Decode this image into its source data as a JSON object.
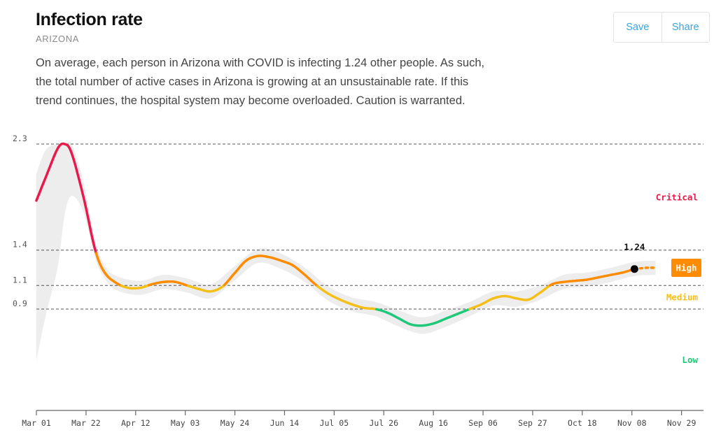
{
  "header": {
    "title": "Infection rate",
    "subtitle": "ARIZONA",
    "description": "On average, each person in Arizona with COVID is infecting 1.24 other people. As such, the total number of active cases in Arizona is growing at an unsustainable rate. If this trend continues, the hospital system may become overloaded. Caution is warranted."
  },
  "actions": {
    "save_label": "Save",
    "share_label": "Share"
  },
  "colors": {
    "critical": "#e8194d",
    "high": "#ff8c00",
    "medium": "#f5bf19",
    "low": "#1ec878",
    "band": "#ededed",
    "accent": "#3ba5dc"
  },
  "chart_data": {
    "type": "line",
    "ylabel": "",
    "xlabel": "",
    "x_tick_labels": [
      "Mar 01",
      "Mar 22",
      "Apr 12",
      "May 03",
      "May 24",
      "Jun 14",
      "Jul 05",
      "Jul 26",
      "Aug 16",
      "Sep 06",
      "Sep 27",
      "Oct 18",
      "Nov 08",
      "Nov 29"
    ],
    "y_ticks": [
      0.9,
      1.1,
      1.4,
      2.3
    ],
    "ylim": [
      0.04,
      2.3
    ],
    "xlim": [
      "2020-03-01",
      "2020-12-01"
    ],
    "grid": "dashed horizontal lines at 0.9, 1.1, 1.4, 2.3",
    "zones": [
      {
        "name": "Critical",
        "label": "Critical",
        "min": 1.4
      },
      {
        "name": "High",
        "label": "High",
        "min": 1.1,
        "max": 1.4
      },
      {
        "name": "Medium",
        "label": "Medium",
        "min": 0.9,
        "max": 1.1
      },
      {
        "name": "Low",
        "label": "Low",
        "max": 0.9
      }
    ],
    "current_zone": "High",
    "current_value_label": "1.24",
    "current_value": 1.24,
    "current_date": "2020-11-10",
    "series": [
      {
        "dates": [
          "2020-03-01",
          "2020-03-05",
          "2020-03-10",
          "2020-03-13",
          "2020-03-16",
          "2020-03-21",
          "2020-03-26",
          "2020-03-30",
          "2020-04-04",
          "2020-04-09",
          "2020-04-14",
          "2020-04-19",
          "2020-04-24",
          "2020-04-29",
          "2020-05-04",
          "2020-05-09",
          "2020-05-14",
          "2020-05-19",
          "2020-05-24",
          "2020-05-29",
          "2020-06-03",
          "2020-06-08",
          "2020-06-13",
          "2020-06-18",
          "2020-06-23",
          "2020-06-28",
          "2020-07-03",
          "2020-07-08",
          "2020-07-13",
          "2020-07-18",
          "2020-07-23",
          "2020-07-28",
          "2020-08-02",
          "2020-08-07",
          "2020-08-12",
          "2020-08-17",
          "2020-08-22",
          "2020-08-27",
          "2020-09-01",
          "2020-09-06",
          "2020-09-11",
          "2020-09-16",
          "2020-09-21",
          "2020-09-26",
          "2020-10-01",
          "2020-10-06",
          "2020-10-11",
          "2020-10-16",
          "2020-10-21",
          "2020-10-26",
          "2020-10-31",
          "2020-11-05",
          "2020-11-10"
        ],
        "values": [
          1.82,
          2.02,
          2.26,
          2.3,
          2.22,
          1.85,
          1.4,
          1.21,
          1.12,
          1.08,
          1.08,
          1.11,
          1.13,
          1.13,
          1.1,
          1.07,
          1.05,
          1.09,
          1.2,
          1.31,
          1.35,
          1.34,
          1.31,
          1.27,
          1.19,
          1.1,
          1.03,
          0.98,
          0.94,
          0.91,
          0.9,
          0.87,
          0.82,
          0.77,
          0.76,
          0.78,
          0.82,
          0.86,
          0.9,
          0.94,
          0.99,
          1.01,
          0.99,
          0.98,
          1.04,
          1.11,
          1.13,
          1.14,
          1.15,
          1.17,
          1.19,
          1.21,
          1.24
        ]
      }
    ],
    "projection": {
      "dates": [
        "2020-11-10",
        "2020-11-15",
        "2020-11-19"
      ],
      "values": [
        1.24,
        1.25,
        1.25
      ]
    },
    "uncertainty_band": {
      "dates": [
        "2020-03-01",
        "2020-03-05",
        "2020-03-10",
        "2020-03-13",
        "2020-03-16",
        "2020-03-21",
        "2020-03-26",
        "2020-03-30",
        "2020-04-04",
        "2020-04-14",
        "2020-04-24",
        "2020-05-04",
        "2020-05-14",
        "2020-05-24",
        "2020-06-03",
        "2020-06-13",
        "2020-06-23",
        "2020-07-03",
        "2020-07-13",
        "2020-07-23",
        "2020-08-02",
        "2020-08-12",
        "2020-08-22",
        "2020-09-01",
        "2020-09-11",
        "2020-09-21",
        "2020-10-01",
        "2020-10-11",
        "2020-10-21",
        "2020-10-31",
        "2020-11-10",
        "2020-11-19"
      ],
      "lower": [
        0.46,
        0.85,
        1.25,
        1.7,
        1.86,
        1.72,
        1.33,
        1.16,
        1.06,
        1.02,
        1.07,
        1.04,
        0.99,
        1.14,
        1.29,
        1.24,
        1.13,
        0.97,
        0.88,
        0.84,
        0.75,
        0.69,
        0.75,
        0.84,
        0.93,
        0.92,
        0.98,
        1.07,
        1.09,
        1.13,
        1.18,
        1.19
      ],
      "upper": [
        2.05,
        2.25,
        2.3,
        2.3,
        2.3,
        1.98,
        1.48,
        1.27,
        1.18,
        1.14,
        1.19,
        1.16,
        1.11,
        1.26,
        1.41,
        1.37,
        1.25,
        1.09,
        1.0,
        0.96,
        0.89,
        0.83,
        0.89,
        0.96,
        1.05,
        1.05,
        1.1,
        1.19,
        1.21,
        1.25,
        1.3,
        1.31
      ]
    }
  }
}
